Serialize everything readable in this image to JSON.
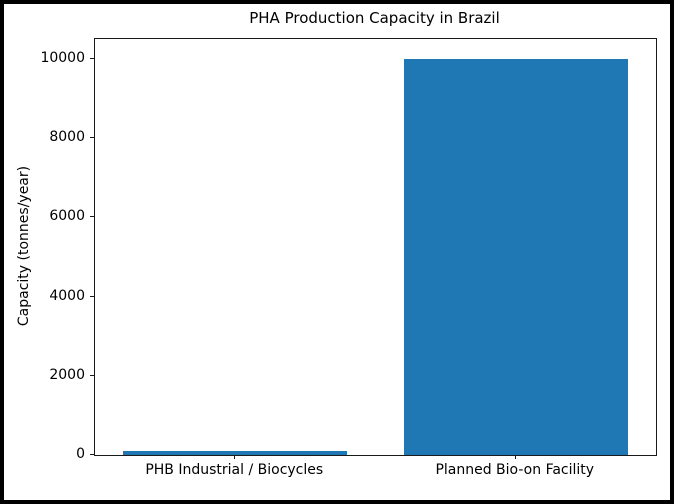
{
  "figure": {
    "frame_color": "#000000",
    "background_color": "#ffffff",
    "spine_color": "#1a1a1a",
    "text_color": "#000000"
  },
  "chart_data": {
    "type": "bar",
    "title": "PHA Production Capacity in Brazil",
    "xlabel": "",
    "ylabel": "Capacity (tonnes/year)",
    "categories": [
      "PHB Industrial / Biocycles",
      "Planned Bio-on Facility"
    ],
    "values": [
      100,
      10000
    ],
    "yticks": [
      0,
      2000,
      4000,
      6000,
      8000,
      10000
    ],
    "ytick_labels": [
      "0",
      "2000",
      "4000",
      "6000",
      "8000",
      "10000"
    ],
    "ylim": [
      0,
      10500
    ],
    "bar_color": "#1f77b4",
    "bar_relative_width": 0.8,
    "grid": false,
    "legend": null
  }
}
